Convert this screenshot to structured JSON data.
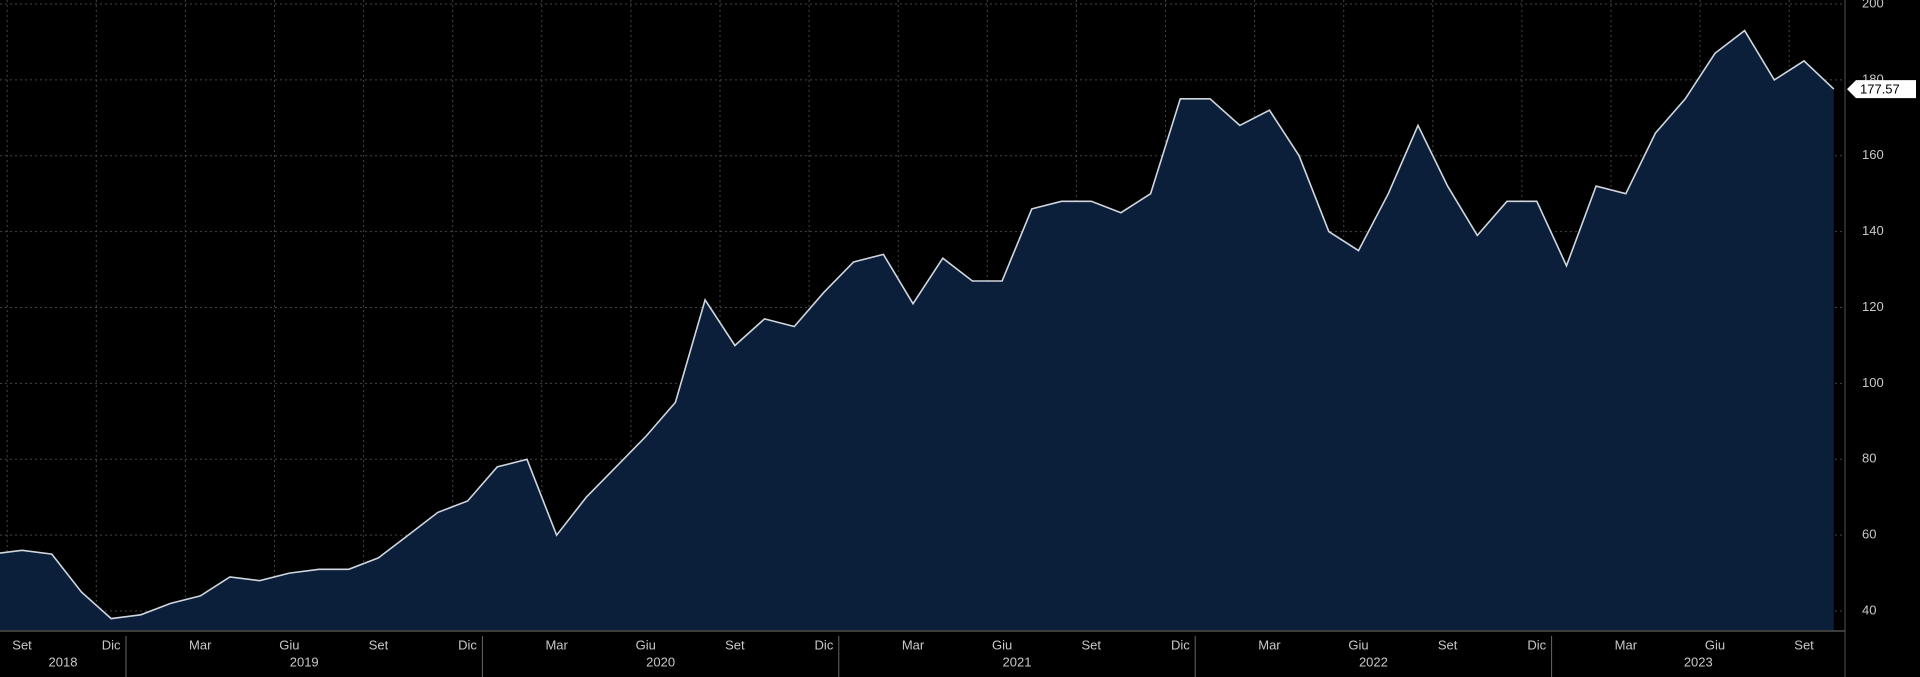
{
  "chart_data": {
    "type": "area",
    "x": [
      "2018-08",
      "2018-09",
      "2018-10",
      "2018-11",
      "2018-12",
      "2019-01",
      "2019-02",
      "2019-03",
      "2019-04",
      "2019-05",
      "2019-06",
      "2019-07",
      "2019-08",
      "2019-09",
      "2019-10",
      "2019-11",
      "2019-12",
      "2020-01",
      "2020-02",
      "2020-03",
      "2020-04",
      "2020-05",
      "2020-06",
      "2020-07",
      "2020-08",
      "2020-09",
      "2020-10",
      "2020-11",
      "2020-12",
      "2021-01",
      "2021-02",
      "2021-03",
      "2021-04",
      "2021-05",
      "2021-06",
      "2021-07",
      "2021-08",
      "2021-09",
      "2021-10",
      "2021-11",
      "2021-12",
      "2022-01",
      "2022-02",
      "2022-03",
      "2022-04",
      "2022-05",
      "2022-06",
      "2022-07",
      "2022-08",
      "2022-09",
      "2022-10",
      "2022-11",
      "2022-12",
      "2023-01",
      "2023-02",
      "2023-03",
      "2023-04",
      "2023-05",
      "2023-06",
      "2023-07",
      "2023-08",
      "2023-09",
      "2023-10"
    ],
    "series": [
      {
        "color": "#cfd6de",
        "fill": "#0b1f3a",
        "values": [
          55,
          56,
          55,
          45,
          38,
          39,
          42,
          44,
          49,
          48,
          50,
          51,
          51,
          54,
          60,
          66,
          69,
          78,
          80,
          60,
          70,
          78,
          86,
          95,
          122,
          110,
          117,
          115,
          124,
          132,
          134,
          121,
          133,
          127,
          127,
          146,
          148,
          148,
          145,
          150,
          175,
          175,
          168,
          172,
          160,
          140,
          135,
          150,
          168,
          152,
          139,
          148,
          148,
          131,
          152,
          150,
          166,
          175,
          187,
          193,
          180,
          185,
          177.57
        ]
      }
    ],
    "ylim": [
      35,
      200
    ],
    "yticks": [
      40,
      60,
      80,
      100,
      120,
      140,
      160,
      180,
      200
    ],
    "grid": true,
    "xticks": [
      {
        "value": "2018-09",
        "label": "Set"
      },
      {
        "value": "2018-12",
        "label": "Dic"
      },
      {
        "value": "2019-03",
        "label": "Mar"
      },
      {
        "value": "2019-06",
        "label": "Giu"
      },
      {
        "value": "2019-09",
        "label": "Set"
      },
      {
        "value": "2019-12",
        "label": "Dic"
      },
      {
        "value": "2020-03",
        "label": "Mar"
      },
      {
        "value": "2020-06",
        "label": "Giu"
      },
      {
        "value": "2020-09",
        "label": "Set"
      },
      {
        "value": "2020-12",
        "label": "Dic"
      },
      {
        "value": "2021-03",
        "label": "Mar"
      },
      {
        "value": "2021-06",
        "label": "Giu"
      },
      {
        "value": "2021-09",
        "label": "Set"
      },
      {
        "value": "2021-12",
        "label": "Dic"
      },
      {
        "value": "2022-03",
        "label": "Mar"
      },
      {
        "value": "2022-06",
        "label": "Giu"
      },
      {
        "value": "2022-09",
        "label": "Set"
      },
      {
        "value": "2022-12",
        "label": "Dic"
      },
      {
        "value": "2023-03",
        "label": "Mar"
      },
      {
        "value": "2023-06",
        "label": "Giu"
      },
      {
        "value": "2023-09",
        "label": "Set"
      }
    ],
    "years": [
      "2018",
      "2019",
      "2020",
      "2021",
      "2022",
      "2023"
    ]
  }
}
